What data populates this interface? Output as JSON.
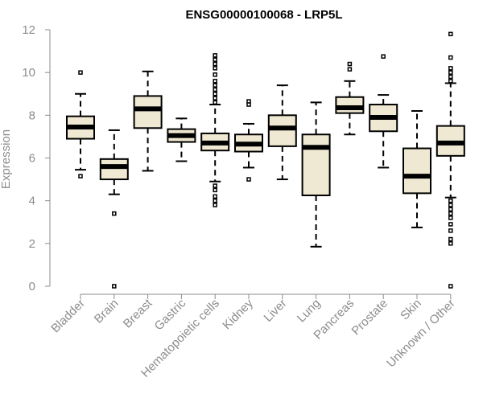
{
  "chart_data": {
    "type": "boxplot",
    "title": "ENSG00000100068 - LRP5L",
    "xlabel": "",
    "ylabel": "Expression",
    "ylim": [
      0,
      12
    ],
    "yticks": [
      0,
      2,
      4,
      6,
      8,
      10,
      12
    ],
    "grid": false,
    "box_fill": "#efe8d2",
    "categories": [
      "Bladder",
      "Brain",
      "Breast",
      "Gastric",
      "Hematopoietic cells",
      "Kidney",
      "Liver",
      "Lung",
      "Pancreas",
      "Prostate",
      "Skin",
      "Unknown / Other"
    ],
    "boxes": [
      {
        "name": "Bladder",
        "whisker_low": 5.45,
        "q1": 6.9,
        "median": 7.45,
        "q3": 7.95,
        "whisker_high": 9.0,
        "outliers": [
          5.15,
          10.0
        ]
      },
      {
        "name": "Brain",
        "whisker_low": 4.3,
        "q1": 5.0,
        "median": 5.6,
        "q3": 5.95,
        "whisker_high": 7.3,
        "outliers": [
          3.4,
          0.0
        ]
      },
      {
        "name": "Breast",
        "whisker_low": 5.4,
        "q1": 7.4,
        "median": 8.3,
        "q3": 8.9,
        "whisker_high": 10.05,
        "outliers": []
      },
      {
        "name": "Gastric",
        "whisker_low": 5.85,
        "q1": 6.75,
        "median": 7.05,
        "q3": 7.35,
        "whisker_high": 7.85,
        "outliers": []
      },
      {
        "name": "Hematopoietic cells",
        "whisker_low": 4.9,
        "q1": 6.35,
        "median": 6.7,
        "q3": 7.15,
        "whisker_high": 8.5,
        "outliers": [
          10.8,
          10.6,
          10.4,
          10.2,
          9.9,
          9.6,
          9.4,
          9.2,
          9.0,
          8.8,
          8.6,
          4.7,
          4.5,
          4.2,
          4.0,
          3.8
        ]
      },
      {
        "name": "Kidney",
        "whisker_low": 5.55,
        "q1": 6.3,
        "median": 6.65,
        "q3": 7.1,
        "whisker_high": 7.6,
        "outliers": [
          8.65,
          8.5,
          5.0
        ]
      },
      {
        "name": "Liver",
        "whisker_low": 5.0,
        "q1": 6.55,
        "median": 7.4,
        "q3": 8.0,
        "whisker_high": 9.4,
        "outliers": []
      },
      {
        "name": "Lung",
        "whisker_low": 1.85,
        "q1": 4.25,
        "median": 6.5,
        "q3": 7.1,
        "whisker_high": 8.6,
        "outliers": []
      },
      {
        "name": "Pancreas",
        "whisker_low": 7.1,
        "q1": 8.1,
        "median": 8.35,
        "q3": 8.85,
        "whisker_high": 9.6,
        "outliers": [
          10.4,
          10.15
        ]
      },
      {
        "name": "Prostate",
        "whisker_low": 5.55,
        "q1": 7.25,
        "median": 7.9,
        "q3": 8.5,
        "whisker_high": 8.95,
        "outliers": [
          10.75
        ]
      },
      {
        "name": "Skin",
        "whisker_low": 2.75,
        "q1": 4.35,
        "median": 5.15,
        "q3": 6.45,
        "whisker_high": 8.2,
        "outliers": []
      },
      {
        "name": "Unknown / Other",
        "whisker_low": 4.15,
        "q1": 6.1,
        "median": 6.7,
        "q3": 7.5,
        "whisker_high": 9.5,
        "outliers": [
          11.8,
          10.7,
          10.2,
          10.0,
          9.8,
          9.6,
          4.0,
          3.8,
          3.6,
          3.4,
          3.2,
          2.9,
          2.6,
          2.2,
          2.0,
          0.0
        ]
      }
    ]
  }
}
